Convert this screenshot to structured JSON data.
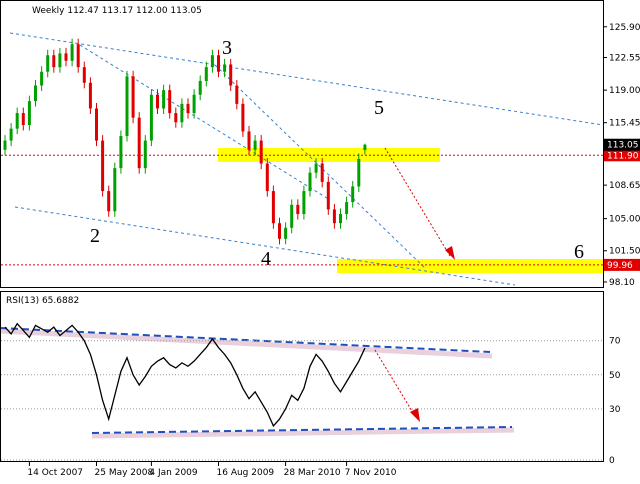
{
  "chart_data": [
    {
      "type": "candlestick",
      "title": "Weekly  112.47 113.17 112.00 113.05",
      "open": [
        112.5,
        113.5,
        114.8,
        116.5,
        115.2,
        117.8,
        119.5,
        121.0,
        122.8,
        121.5,
        123.0,
        122.2,
        124.0,
        121.5,
        119.8,
        117.0,
        113.5,
        108.0,
        105.8,
        110.5,
        114.0,
        120.5,
        116.0,
        110.5,
        113.5,
        118.5,
        117.0,
        119.0,
        116.5,
        115.5,
        117.5,
        116.5,
        118.5,
        120.0,
        121.5,
        122.8,
        121.0,
        121.8,
        119.5,
        117.5,
        114.5,
        112.5,
        113.5,
        111.0,
        108.0,
        104.5,
        102.8,
        104.0,
        106.5,
        105.5,
        108.0,
        110.0,
        111.0,
        109.0,
        106.0,
        104.5,
        105.5,
        106.8,
        108.5,
        112.47
      ],
      "high": [
        114.1,
        115.4,
        117.1,
        117.1,
        118.4,
        120.1,
        121.6,
        123.4,
        123.4,
        123.6,
        123.6,
        124.6,
        124.6,
        122.1,
        120.4,
        117.6,
        114.1,
        108.6,
        111.1,
        114.6,
        121.1,
        121.1,
        116.6,
        114.1,
        119.1,
        119.1,
        119.6,
        119.6,
        117.1,
        118.1,
        118.1,
        119.1,
        120.6,
        122.1,
        123.4,
        123.4,
        122.4,
        122.4,
        120.1,
        118.1,
        115.1,
        114.1,
        114.1,
        111.6,
        108.6,
        105.1,
        104.6,
        107.1,
        107.1,
        108.6,
        110.6,
        111.6,
        111.6,
        109.6,
        106.6,
        106.1,
        107.4,
        109.1,
        112.1,
        113.17
      ],
      "low": [
        111.9,
        112.9,
        114.2,
        114.6,
        114.6,
        117.2,
        118.9,
        120.4,
        120.9,
        120.9,
        121.6,
        121.6,
        120.9,
        119.2,
        116.4,
        112.9,
        107.4,
        105.2,
        105.2,
        109.9,
        113.4,
        115.4,
        109.9,
        109.9,
        112.9,
        116.4,
        116.4,
        115.9,
        114.9,
        114.9,
        115.9,
        115.9,
        117.9,
        119.4,
        120.9,
        120.4,
        120.4,
        118.9,
        116.9,
        113.9,
        111.9,
        111.9,
        110.4,
        107.4,
        103.9,
        102.2,
        102.2,
        103.4,
        104.9,
        104.9,
        107.4,
        109.4,
        108.4,
        105.4,
        103.9,
        103.9,
        104.9,
        106.2,
        107.9,
        112.0
      ],
      "close": [
        113.5,
        114.8,
        116.5,
        115.2,
        117.8,
        119.5,
        121.0,
        122.8,
        121.5,
        123.0,
        122.2,
        124.0,
        121.5,
        119.8,
        117.0,
        113.5,
        108.0,
        105.8,
        110.5,
        114.0,
        120.5,
        116.0,
        110.5,
        113.5,
        118.5,
        117.0,
        119.0,
        116.5,
        115.5,
        117.5,
        116.5,
        118.5,
        120.0,
        121.5,
        122.8,
        121.0,
        121.8,
        119.5,
        117.5,
        114.5,
        112.5,
        113.5,
        111.0,
        108.0,
        104.5,
        102.8,
        104.0,
        106.5,
        105.5,
        108.0,
        110.0,
        111.0,
        109.0,
        106.0,
        104.5,
        105.5,
        106.8,
        108.5,
        111.5,
        113.05
      ],
      "up_color": "#00a000",
      "down_color": "#e00000",
      "ylim": [
        97.55,
        128.6
      ],
      "yticks": [
        {
          "value": 125.9,
          "label": "125.90"
        },
        122.55,
        {
          "value": 119,
          "label": "119.00"
        },
        115.45,
        108.65,
        {
          "value": 105,
          "label": "105.00"
        },
        {
          "value": 101.5,
          "label": "101.50"
        },
        {
          "value": 98.1,
          "label": "98.10"
        }
      ],
      "levels": [
        {
          "value": 111.9,
          "label": "111.90"
        },
        {
          "value": 99.96,
          "label": "99.96"
        }
      ],
      "current": {
        "value": 113.05,
        "label": "113.05"
      },
      "annotations": [
        "2",
        "3",
        "4",
        "5",
        "6"
      ]
    },
    {
      "type": "line",
      "title": "RSI(13) 65.6882",
      "color": "#000000",
      "categories": [
        null,
        null,
        null,
        null,
        "14 Oct 2007",
        null,
        null,
        null,
        null,
        null,
        null,
        null,
        null,
        null,
        null,
        "25 May 2008",
        null,
        null,
        null,
        null,
        null,
        null,
        null,
        null,
        "4 Jan 2009",
        null,
        null,
        null,
        null,
        null,
        null,
        null,
        null,
        null,
        null,
        "16 Aug 2009",
        null,
        null,
        null,
        null,
        null,
        null,
        null,
        null,
        null,
        null,
        "28 Mar 2010",
        null,
        null,
        null,
        null,
        null,
        null,
        null,
        null,
        null,
        "7 Nov 2010",
        null,
        null,
        null
      ],
      "values": [
        78,
        74,
        80,
        76,
        72,
        79,
        77,
        75,
        78,
        73,
        76,
        79,
        75,
        70,
        62,
        50,
        35,
        24,
        38,
        52,
        60,
        50,
        44,
        49,
        55,
        58,
        60,
        56,
        54,
        57,
        55,
        58,
        62,
        66,
        71,
        66,
        62,
        57,
        50,
        42,
        36,
        40,
        34,
        28,
        20,
        24,
        30,
        38,
        35,
        42,
        55,
        62,
        58,
        52,
        45,
        40,
        46,
        52,
        58,
        65.6882
      ],
      "ylim": [
        0,
        98
      ],
      "yticks": [
        70,
        50,
        30,
        0
      ],
      "grid": true
    }
  ]
}
